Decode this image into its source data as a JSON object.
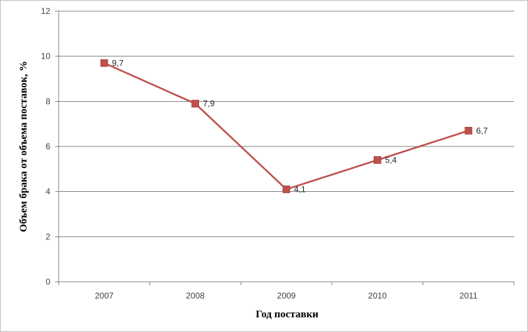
{
  "chart_data": {
    "type": "line",
    "title": "",
    "xlabel": "Год поставки",
    "ylabel": "Объем брака от объема поставок, %",
    "categories": [
      "2007",
      "2008",
      "2009",
      "2010",
      "2011"
    ],
    "series": [
      {
        "values": [
          9.7,
          7.9,
          4.1,
          5.4,
          6.7
        ],
        "labels": [
          "9,7",
          "7,9",
          "4,1",
          "5,4",
          "6,7"
        ],
        "color": "#c0504d"
      }
    ],
    "ylim": [
      0,
      12
    ],
    "yticks": [
      0,
      2,
      4,
      6,
      8,
      10,
      12
    ],
    "grid": true,
    "legend": "none"
  }
}
